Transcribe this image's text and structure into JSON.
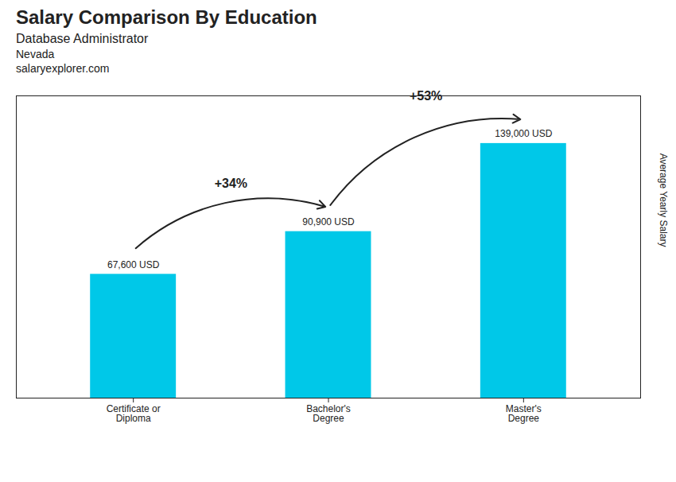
{
  "chart_data": {
    "type": "bar",
    "title": "Salary Comparison By Education",
    "subtitle": "Database Administrator",
    "categories": [
      "Certificate or\nDiploma",
      "Bachelor's\nDegree",
      "Master's\nDegree"
    ],
    "values": [
      67600,
      90900,
      139000
    ],
    "value_labels": [
      "67,600 USD",
      "90,900 USD",
      "139,000 USD"
    ],
    "data_labels": true,
    "color": "#00c8e8",
    "ylabel": "Average Yearly Salary",
    "ylim": [
      0,
      165000
    ],
    "tick_labels": "x",
    "annotations": [
      {
        "text": "Nevada"
      },
      {
        "text": "salaryexplorer.com"
      },
      {
        "text": "+34%",
        "from": "Certificate or\nDiploma",
        "to": "Bachelor's\nDegree"
      },
      {
        "text": "+53%",
        "from": "Bachelor's\nDegree",
        "to": "Master's\nDegree"
      }
    ]
  }
}
